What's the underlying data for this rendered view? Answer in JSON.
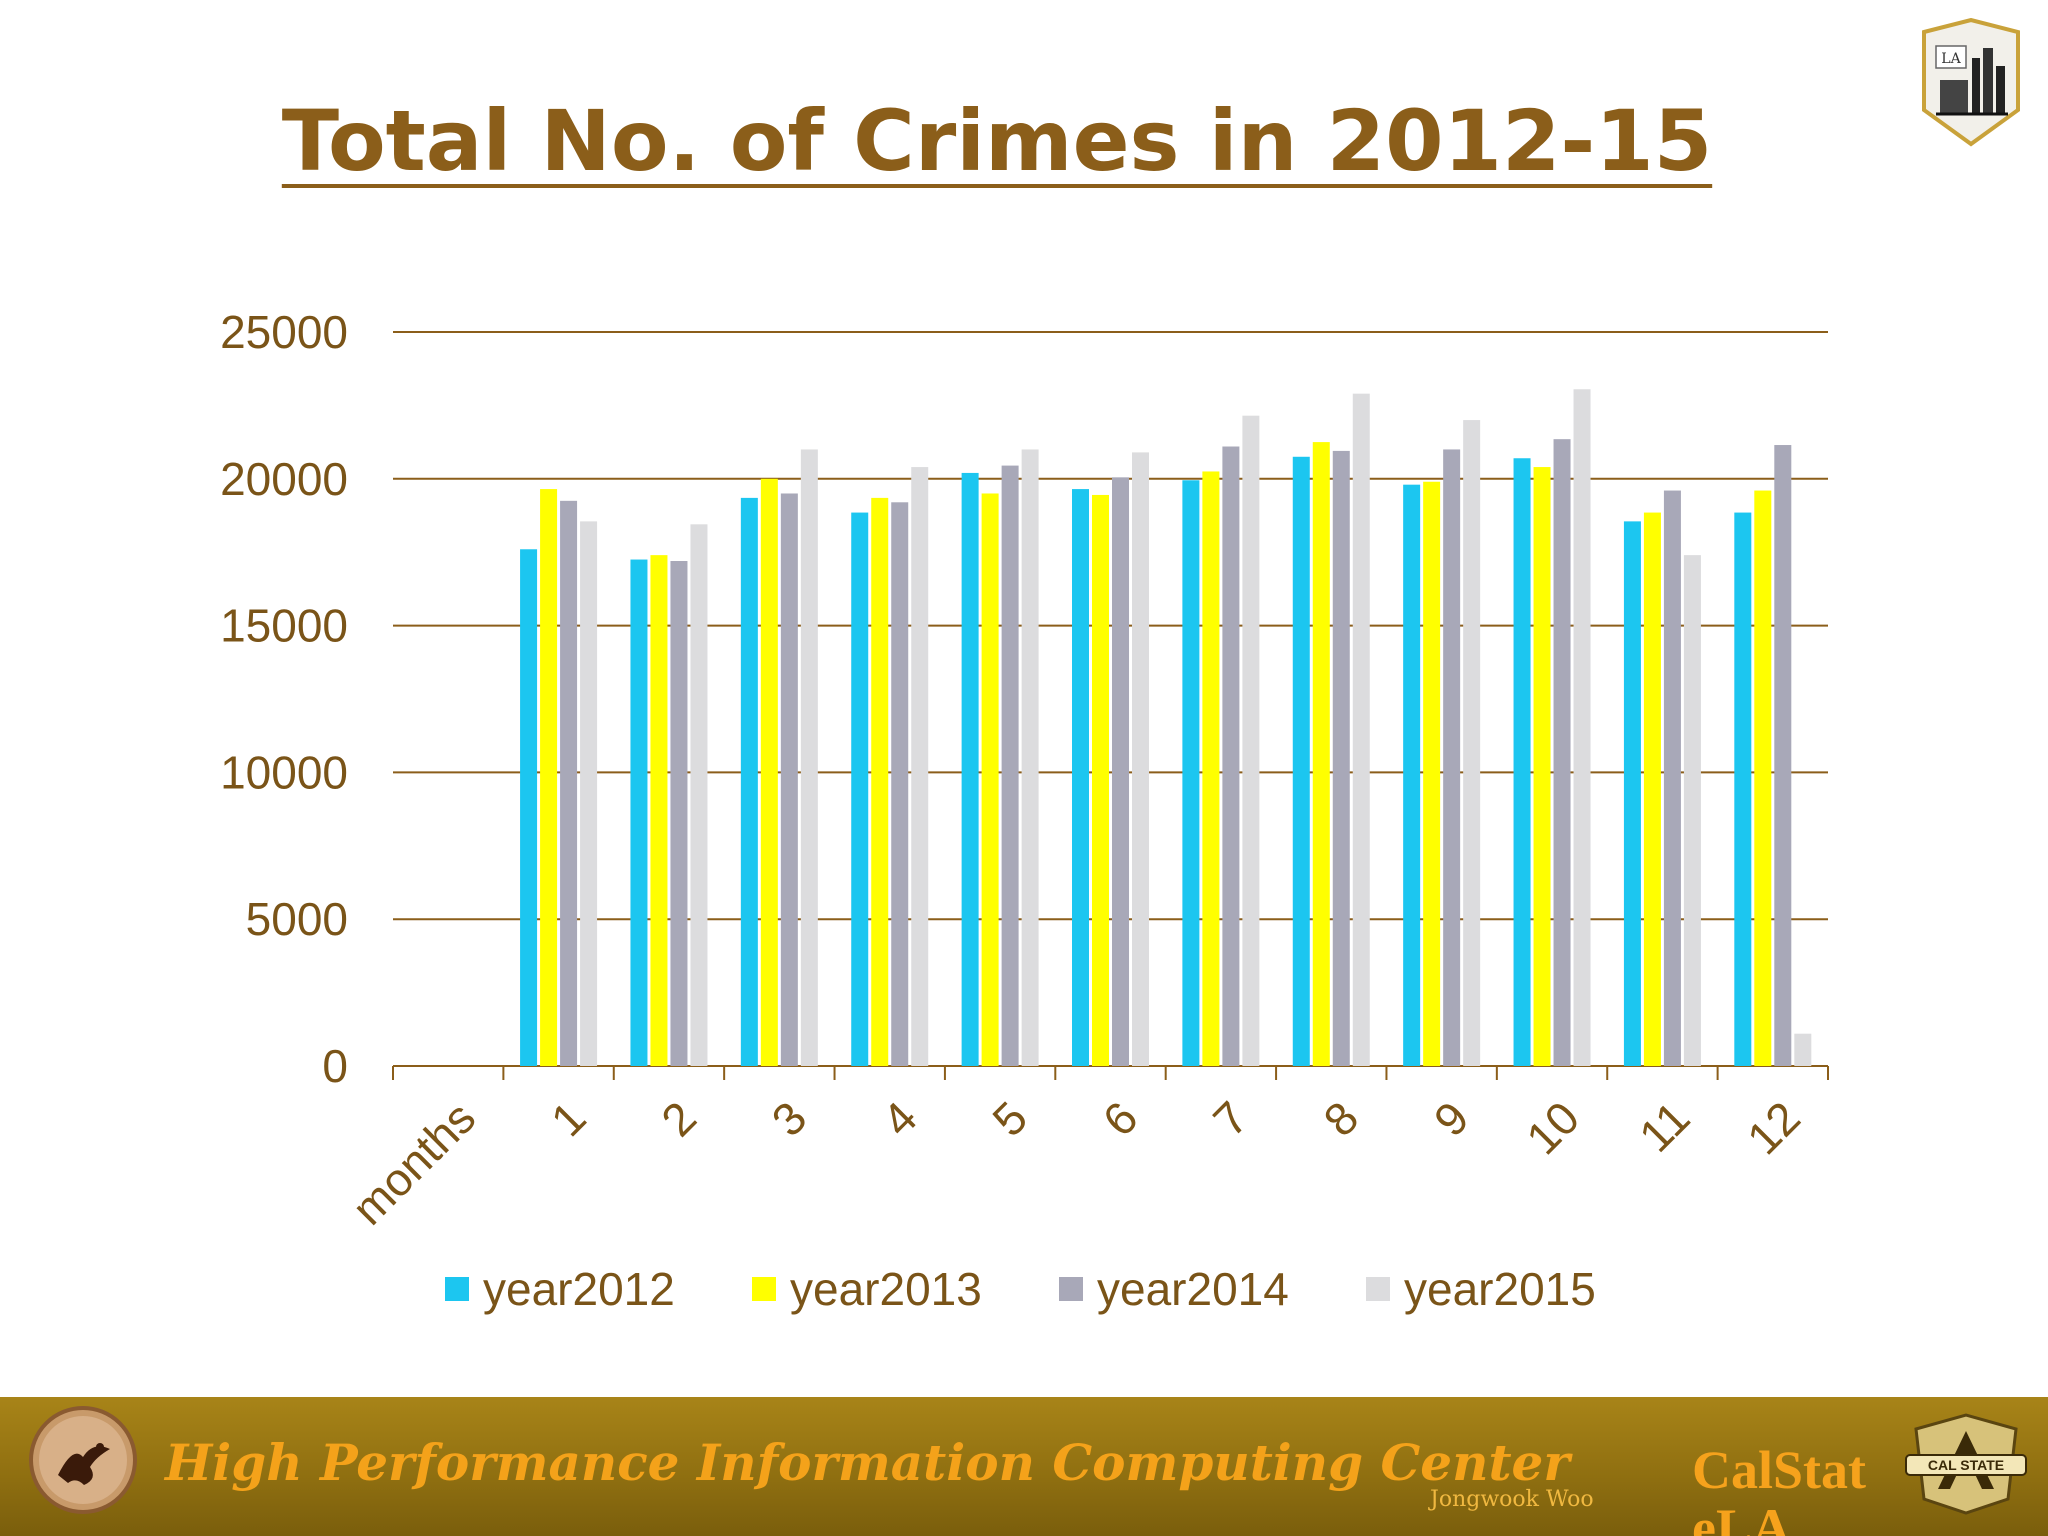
{
  "slide": {
    "title": "Total No. of Crimes in 2012-15"
  },
  "footer": {
    "center_name": "High Performance Information Computing Center",
    "author": "Jongwook Woo",
    "brand_line1": "CalStat",
    "brand_line2": "eLA",
    "logo_text": "LA",
    "emblem_text": "CAL STATE"
  },
  "colors": {
    "title": "#8B5E1A",
    "axis_text": "#7A5418",
    "gridline": "#8B5E1A"
  },
  "chart_data": {
    "type": "bar",
    "xlabel": "",
    "ylabel": "",
    "categories": [
      "months",
      "1",
      "2",
      "3",
      "4",
      "5",
      "6",
      "7",
      "8",
      "9",
      "10",
      "11",
      "12"
    ],
    "ylim": [
      0,
      25000
    ],
    "yticks": [
      0,
      5000,
      10000,
      15000,
      20000,
      25000
    ],
    "grid": true,
    "legend_position": "bottom",
    "series": [
      {
        "name": "year2012",
        "color": "#1CC6F0",
        "values": [
          null,
          17600,
          17250,
          19350,
          18850,
          20200,
          19650,
          19950,
          20750,
          19800,
          20700,
          18550,
          18850
        ]
      },
      {
        "name": "year2013",
        "color": "#FFFF00",
        "values": [
          null,
          19650,
          17400,
          20000,
          19350,
          19500,
          19450,
          20250,
          21250,
          19900,
          20400,
          18850,
          19600
        ]
      },
      {
        "name": "year2014",
        "color": "#A8A8B8",
        "values": [
          null,
          19250,
          17200,
          19500,
          19200,
          20450,
          20050,
          21100,
          20950,
          21000,
          21350,
          19600,
          21150
        ]
      },
      {
        "name": "year2015",
        "color": "#DCDCDE",
        "values": [
          null,
          18550,
          18450,
          21000,
          20400,
          21000,
          20900,
          22150,
          22900,
          22000,
          23050,
          17400,
          1100
        ]
      }
    ]
  }
}
